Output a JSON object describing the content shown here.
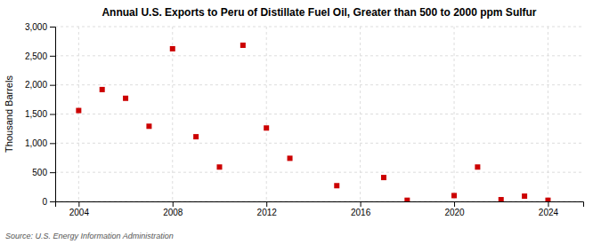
{
  "chart_data": {
    "type": "scatter",
    "title": "Annual U.S. Exports to Peru of Distillate Fuel Oil, Greater than 500 to 2000 ppm Sulfur",
    "y_label": "Thousand Barrels",
    "annotations": [
      "Source: U.S. Energy Information Administration"
    ],
    "x": [
      2004,
      2005,
      2006,
      2007,
      2008,
      2009,
      2010,
      2011,
      2012,
      2013,
      2015,
      2017,
      2018,
      2020,
      2021,
      2022,
      2023,
      2024
    ],
    "values": [
      1560,
      1920,
      1770,
      1290,
      2620,
      1110,
      590,
      2680,
      1260,
      740,
      270,
      410,
      20,
      100,
      590,
      30,
      90,
      20
    ],
    "color": "#cc0000",
    "marker": "square",
    "grid": true,
    "xlim": [
      2003.0,
      2025.5
    ],
    "xticks": [
      2004,
      2008,
      2012,
      2016,
      2020,
      2024
    ],
    "ylim": [
      0,
      3000
    ],
    "yticks": [
      0,
      500,
      {
        "value": 1000,
        "label": "1,000"
      },
      {
        "value": 1500,
        "label": "1,500"
      },
      {
        "value": 2000,
        "label": "2,000"
      },
      {
        "value": 2500,
        "label": "2,500"
      },
      {
        "value": 3000,
        "label": "3,000"
      }
    ]
  }
}
